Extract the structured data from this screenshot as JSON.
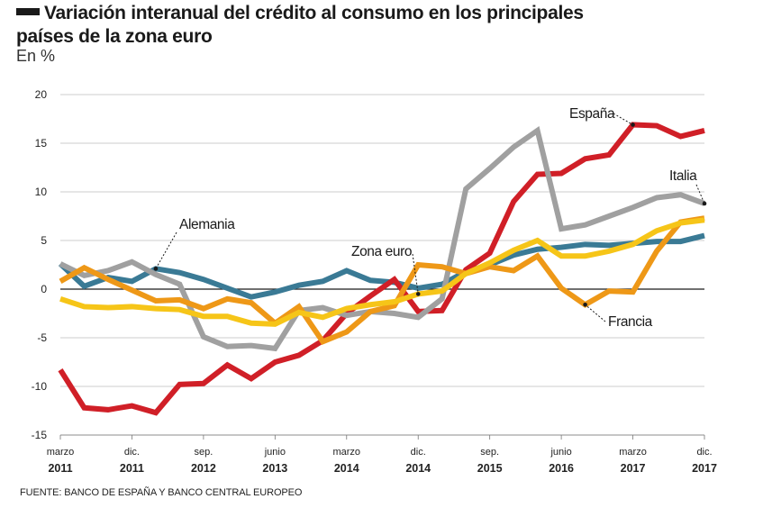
{
  "title_line1": "Variación interanual del crédito al consumo en los principales",
  "title_line2": "países de la zona euro",
  "subtitle": "En %",
  "source": "FUENTE:  BANCO DE ESPAÑA Y BANCO CENTRAL EUROPEO",
  "chart_data": {
    "type": "line",
    "title": "Variación interanual del crédito al consumo en los principales países de la zona euro",
    "ylabel": "En %",
    "xlabel": "",
    "ylim": [
      -15,
      20
    ],
    "yticks": [
      20,
      15,
      10,
      5,
      0,
      -5,
      -10,
      -15
    ],
    "xlim": [
      0,
      27
    ],
    "xticks": [
      {
        "month": "marzo",
        "year": "2011",
        "x": 0
      },
      {
        "month": "dic.",
        "year": "2011",
        "x": 3
      },
      {
        "month": "sep.",
        "year": "2012",
        "x": 6
      },
      {
        "month": "junio",
        "year": "2013",
        "x": 9
      },
      {
        "month": "marzo",
        "year": "2014",
        "x": 12
      },
      {
        "month": "dic.",
        "year": "2014",
        "x": 15
      },
      {
        "month": "sep.",
        "year": "2015",
        "x": 18
      },
      {
        "month": "junio",
        "year": "2016",
        "x": 21
      },
      {
        "month": "marzo",
        "year": "2017",
        "x": 24
      },
      {
        "month": "dic.",
        "year": "2017",
        "x": 27
      }
    ],
    "x_step": "quarterly",
    "grid": "horizontal",
    "series": [
      {
        "name": "Alemania",
        "color": "#3a7a95",
        "values": [
          2.6,
          0.3,
          1.2,
          0.8,
          2.1,
          1.7,
          1,
          0.1,
          -0.8,
          -0.3,
          0.4,
          0.8,
          1.9,
          0.9,
          0.7,
          0.1,
          0.5,
          1.8,
          2.5,
          3.5,
          4.1,
          4.3,
          4.6,
          4.5,
          4.7,
          4.9,
          4.9,
          5.5
        ]
      },
      {
        "name": "España",
        "color": "#d01f27",
        "values": [
          -8.3,
          -12.2,
          -12.4,
          -12,
          -12.7,
          -9.8,
          -9.7,
          -7.8,
          -9.2,
          -7.5,
          -6.8,
          -5.3,
          -2.5,
          -0.7,
          1,
          -2.3,
          -2.2,
          2,
          3.7,
          9,
          11.8,
          11.9,
          13.4,
          13.8,
          16.9,
          16.8,
          15.7,
          16.3
        ]
      },
      {
        "name": "Italia",
        "color": "#a0a0a0",
        "values": [
          2.6,
          1.4,
          1.9,
          2.8,
          1.5,
          0.5,
          -4.9,
          -5.9,
          -5.8,
          -6.1,
          -2.2,
          -1.9,
          -2.7,
          -2.3,
          -2.5,
          -2.9,
          -1,
          10.3,
          12.4,
          14.6,
          16.3,
          6.2,
          6.6,
          7.5,
          8.4,
          9.4,
          9.7,
          8.8
        ]
      },
      {
        "name": "Francia",
        "color": "#ee9817",
        "values": [
          0.8,
          2.2,
          1,
          -0.1,
          -1.2,
          -1.1,
          -2,
          -1,
          -1.4,
          -3.5,
          -1.8,
          -5.4,
          -4.4,
          -2.3,
          -1.7,
          2.5,
          2.3,
          1.6,
          2.3,
          1.9,
          3.4,
          0.1,
          -1.6,
          -0.2,
          -0.3,
          3.9,
          6.9,
          7.3
        ]
      },
      {
        "name": "Zona euro",
        "color": "#f6c518",
        "values": [
          -1,
          -1.8,
          -1.9,
          -1.8,
          -2,
          -2.1,
          -2.8,
          -2.8,
          -3.5,
          -3.6,
          -2.4,
          -2.9,
          -2,
          -1.6,
          -1.3,
          -0.5,
          -0.2,
          1.6,
          2.7,
          4,
          5,
          3.4,
          3.4,
          3.9,
          4.6,
          6,
          6.8,
          7.1
        ]
      }
    ],
    "annotations": [
      "Alemania",
      "España",
      "Italia",
      "Zona euro",
      "Francia"
    ]
  }
}
